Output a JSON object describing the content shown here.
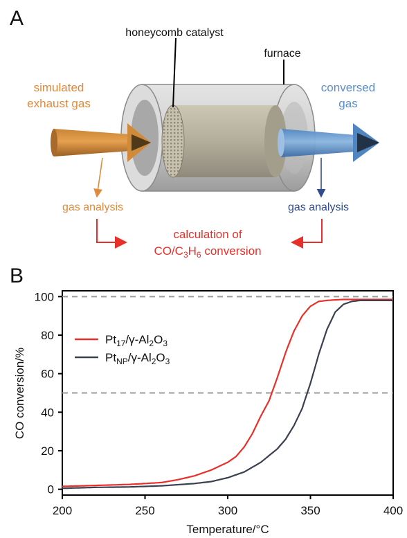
{
  "panel_a": {
    "letter": "A",
    "labels": {
      "catalyst": "honeycomb catalyst",
      "furnace": "furnace",
      "inlet_line1": "simulated",
      "inlet_line2": "exhaust gas",
      "outlet_line1": "conversed",
      "outlet_line2": "gas",
      "analysis_left": "gas analysis",
      "analysis_right": "gas analysis",
      "calc_line1": "calculation of",
      "calc_line2_pre": "CO/C",
      "calc_sub1": "3",
      "calc_mid": "H",
      "calc_sub2": "6",
      "calc_post": " conversion"
    },
    "colors": {
      "inlet": "#e08a3c",
      "outlet": "#5b8ec9",
      "analysis_right": "#2f4c8f",
      "calc": "#e8302a"
    }
  },
  "panel_b": {
    "letter": "B"
  },
  "chart_data": {
    "type": "line",
    "xlabel": "Temperature/°C",
    "ylabel": "CO conversion/%",
    "xlim": [
      200,
      400
    ],
    "ylim": [
      -3,
      103
    ],
    "xticks": [
      "200",
      "250",
      "300",
      "350",
      "400"
    ],
    "yticks": [
      "0",
      "20",
      "40",
      "60",
      "80",
      "100"
    ],
    "ref_lines": [
      100,
      50
    ],
    "legend_position": "upper-left",
    "series": [
      {
        "legend": {
          "main": "Pt",
          "sub": "17",
          "mid": "/γ-Al",
          "sub2": "2",
          "mid2": "O",
          "sub3": "3"
        },
        "color": "#e8302a",
        "x": [
          200,
          220,
          240,
          260,
          270,
          280,
          290,
          300,
          305,
          310,
          315,
          320,
          325,
          330,
          335,
          340,
          345,
          350,
          355,
          360,
          365,
          370,
          380,
          400
        ],
        "y": [
          1.5,
          2,
          2.5,
          3.5,
          5,
          7,
          10,
          14,
          17,
          22,
          29,
          38,
          46,
          58,
          71,
          82,
          90,
          95,
          97.5,
          98,
          98.3,
          98.5,
          98.5,
          98.5
        ]
      },
      {
        "legend": {
          "main": "Pt",
          "sub": "NP",
          "mid": "/γ-Al",
          "sub2": "2",
          "mid2": "O",
          "sub3": "3"
        },
        "color": "#3a4050",
        "x": [
          200,
          220,
          240,
          260,
          280,
          290,
          300,
          310,
          320,
          330,
          335,
          340,
          345,
          350,
          355,
          360,
          365,
          370,
          375,
          380,
          400
        ],
        "y": [
          0.5,
          1,
          1.2,
          1.8,
          3,
          4,
          6,
          9,
          14,
          21,
          26,
          33,
          42,
          55,
          70,
          83,
          92,
          96,
          97.5,
          98,
          98
        ]
      }
    ]
  }
}
